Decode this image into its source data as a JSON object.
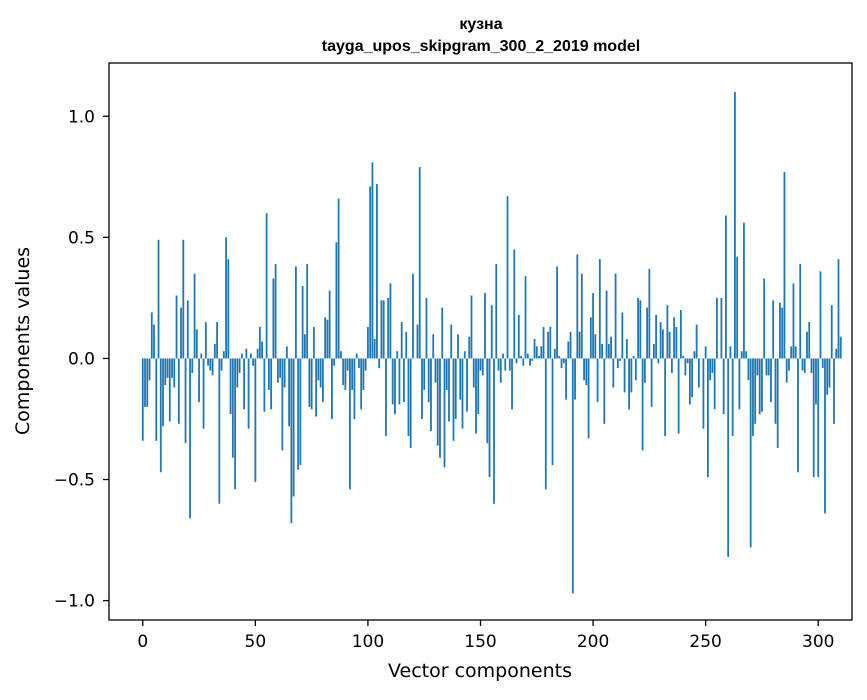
{
  "chart_data": {
    "type": "bar",
    "title": "кузна",
    "subtitle": "tayga_upos_skipgram_300_2_2019 model",
    "xlabel": "Vector components",
    "ylabel": "Components values",
    "xlim": [
      -15,
      315
    ],
    "ylim": [
      -1.08,
      1.22
    ],
    "xticks": [
      0,
      50,
      100,
      150,
      200,
      250,
      300
    ],
    "yticks": [
      -1.0,
      -0.5,
      0.0,
      0.5,
      1.0
    ],
    "ytick_labels": [
      "−1.0",
      "−0.5",
      "0.0",
      "0.5",
      "1.0"
    ],
    "grid": false,
    "bar_color": "#1f77b4",
    "values": [
      -0.34,
      -0.2,
      -0.2,
      -0.09,
      0.19,
      0.14,
      -0.34,
      0.49,
      -0.47,
      -0.28,
      -0.11,
      -0.08,
      -0.26,
      -0.08,
      -0.12,
      0.26,
      -0.27,
      0.21,
      0.49,
      -0.35,
      0.24,
      -0.66,
      -0.06,
      0.35,
      0.12,
      -0.18,
      0.02,
      -0.29,
      0.15,
      -0.03,
      -0.05,
      -0.07,
      0.06,
      0.15,
      -0.6,
      -0.05,
      0.03,
      0.5,
      0.41,
      -0.23,
      -0.41,
      -0.54,
      -0.12,
      -0.06,
      0.02,
      -0.21,
      0.04,
      -0.29,
      0.02,
      -0.03,
      -0.51,
      0.04,
      0.13,
      0.07,
      -0.22,
      0.6,
      -0.13,
      -0.21,
      0.33,
      0.39,
      -0.1,
      -0.08,
      -0.38,
      -0.12,
      0.05,
      -0.28,
      -0.68,
      -0.57,
      0.38,
      -0.46,
      -0.44,
      0.3,
      0.1,
      0.39,
      -0.2,
      -0.21,
      0.13,
      -0.24,
      -0.09,
      -0.12,
      -0.18,
      0.17,
      0.16,
      0.28,
      -0.25,
      -0.03,
      0.48,
      0.66,
      0.03,
      -0.11,
      -0.13,
      -0.05,
      -0.54,
      -0.13,
      -0.25,
      0.02,
      -0.04,
      -0.21,
      -0.13,
      -0.05,
      0.13,
      0.71,
      0.81,
      0.08,
      0.72,
      -0.04,
      0.24,
      0.24,
      -0.32,
      0.25,
      0.31,
      -0.19,
      -0.23,
      0.03,
      -0.19,
      0.15,
      -0.18,
      0.11,
      -0.32,
      -0.37,
      0.35,
      0.0,
      0.14,
      0.79,
      -0.25,
      -0.13,
      0.25,
      -0.18,
      -0.3,
      0.1,
      -0.1,
      -0.36,
      -0.41,
      0.21,
      -0.45,
      -0.13,
      -0.26,
      0.14,
      -0.34,
      -0.25,
      0.1,
      -0.17,
      -0.29,
      0.03,
      -0.22,
      0.09,
      0.26,
      -0.12,
      -0.31,
      -0.23,
      -0.05,
      -0.07,
      0.27,
      -0.35,
      -0.49,
      0.22,
      -0.6,
      0.39,
      -0.05,
      -0.1,
      0.02,
      -0.05,
      0.67,
      -0.05,
      -0.21,
      0.45,
      -0.02,
      0.18,
      0.01,
      -0.03,
      0.34,
      0.02,
      -0.03,
      -0.01,
      0.08,
      0.05,
      0.01,
      0.05,
      0.13,
      -0.54,
      0.11,
      0.13,
      -0.44,
      0.04,
      0.38,
      0.01,
      -0.04,
      -0.02,
      -0.17,
      0.07,
      0.11,
      -0.97,
      -0.17,
      0.43,
      0.11,
      0.35,
      -0.09,
      -0.11,
      -0.33,
      0.17,
      0.27,
      0.1,
      -0.18,
      0.41,
      0.06,
      -0.27,
      0.28,
      0.06,
      0.09,
      -0.12,
      0.35,
      -0.04,
      -0.01,
      0.19,
      -0.14,
      0.08,
      -0.21,
      -0.14,
      0.01,
      -0.09,
      0.25,
      0.24,
      -0.38,
      -0.1,
      0.21,
      0.37,
      -0.2,
      0.06,
      0.18,
      -0.02,
      0.15,
      0.12,
      -0.32,
      0.22,
      0.11,
      -0.06,
      0.17,
      0.13,
      -0.31,
      0.2,
      0.01,
      -0.07,
      -0.02,
      -0.19,
      -0.16,
      0.03,
      0.14,
      -0.12,
      0.0,
      -0.29,
      0.05,
      -0.49,
      -0.09,
      -0.06,
      -0.21,
      0.25,
      0.0,
      0.25,
      -0.23,
      0.59,
      -0.82,
      0.05,
      -0.32,
      1.1,
      0.42,
      -0.21,
      0.03,
      0.56,
      0.03,
      -0.09,
      -0.78,
      -0.32,
      -0.27,
      -0.07,
      -0.23,
      -0.22,
      0.33,
      -0.07,
      -0.07,
      -0.18,
      0.24,
      -0.27,
      -0.37,
      0.23,
      0.21,
      0.77,
      -0.1,
      -0.05,
      0.05,
      0.31,
      0.05,
      -0.47,
      0.39,
      -0.05,
      -0.06,
      0.11,
      0.15,
      -0.06,
      -0.49,
      -0.19,
      -0.49,
      0.36,
      -0.04,
      -0.64,
      -0.15,
      -0.12,
      0.22,
      -0.27,
      0.04,
      0.41,
      0.09
    ]
  }
}
